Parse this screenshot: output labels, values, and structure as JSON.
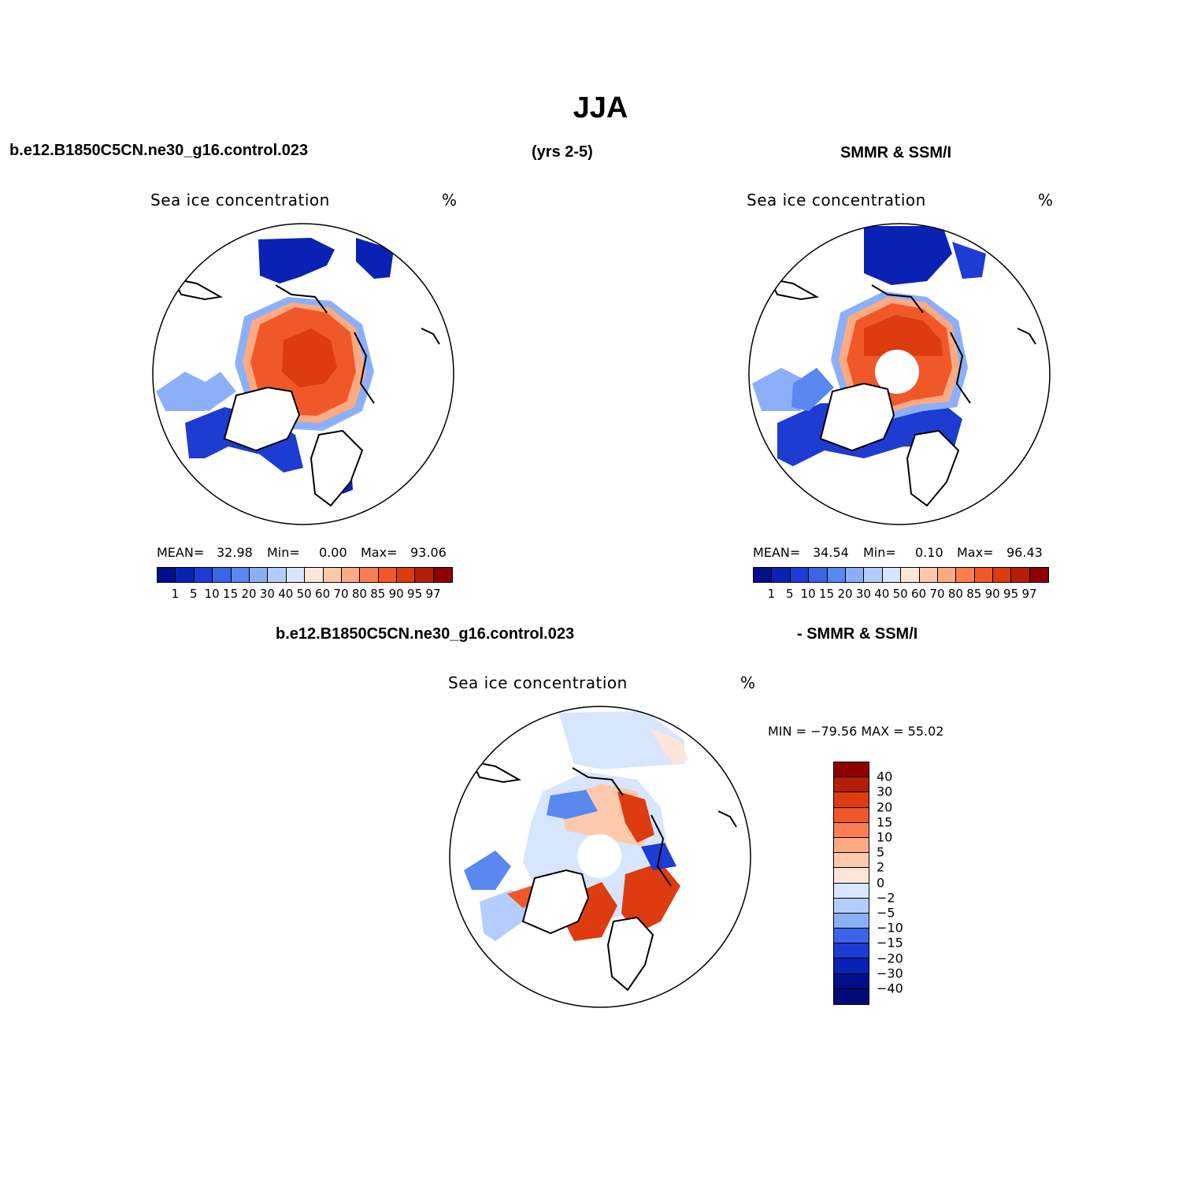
{
  "title": "JJA",
  "headers": {
    "left": "b.e12.B1850C5CN.ne30_g16.control.023",
    "center": "(yrs 2-5)",
    "right": "SMMR & SSM/I",
    "diff_left": "b.e12.B1850C5CN.ne30_g16.control.023",
    "diff_right": "- SMMR & SSM/I"
  },
  "panels": {
    "model": {
      "field": "Sea ice concentration",
      "units": "%",
      "mean_label": "MEAN=",
      "mean": "32.98",
      "min_label": "Min=",
      "min": "0.00",
      "max_label": "Max=",
      "max": "93.06"
    },
    "obs": {
      "field": "Sea ice concentration",
      "units": "%",
      "mean_label": "MEAN=",
      "mean": "34.54",
      "min_label": "Min=",
      "min": "0.10",
      "max_label": "Max=",
      "max": "96.43"
    },
    "diff": {
      "field": "Sea ice concentration",
      "units": "%",
      "minmax": "MIN = −79.56  MAX =   55.02"
    }
  },
  "colorbar_abs": {
    "levels": [
      "1",
      "5",
      "10",
      "15",
      "20",
      "30",
      "40",
      "50",
      "60",
      "70",
      "80",
      "85",
      "90",
      "95",
      "97"
    ],
    "colors": [
      "#000e8c",
      "#0a22b4",
      "#1e3cd2",
      "#3c64e6",
      "#5a87f0",
      "#8cb0f8",
      "#b4cdfc",
      "#d7e6fd",
      "#fde6d7",
      "#fcc9ad",
      "#fcaa84",
      "#fa7e52",
      "#f0582a",
      "#dc3c10",
      "#b41e0a",
      "#8c0000"
    ]
  },
  "colorbar_diff": {
    "levels": [
      "40",
      "30",
      "20",
      "15",
      "10",
      "5",
      "2",
      "0",
      "−2",
      "−5",
      "−10",
      "−15",
      "−20",
      "−30",
      "−40"
    ],
    "colors": [
      "#8c0000",
      "#b41e0a",
      "#dc3c10",
      "#f0582a",
      "#fa7e52",
      "#fcaa84",
      "#fcc9ad",
      "#fde6d7",
      "#d7e6fd",
      "#b4cdfc",
      "#8cb0f8",
      "#3c64e6",
      "#1e3cd2",
      "#0a22b4",
      "#000e8c",
      "#000a78"
    ]
  }
}
